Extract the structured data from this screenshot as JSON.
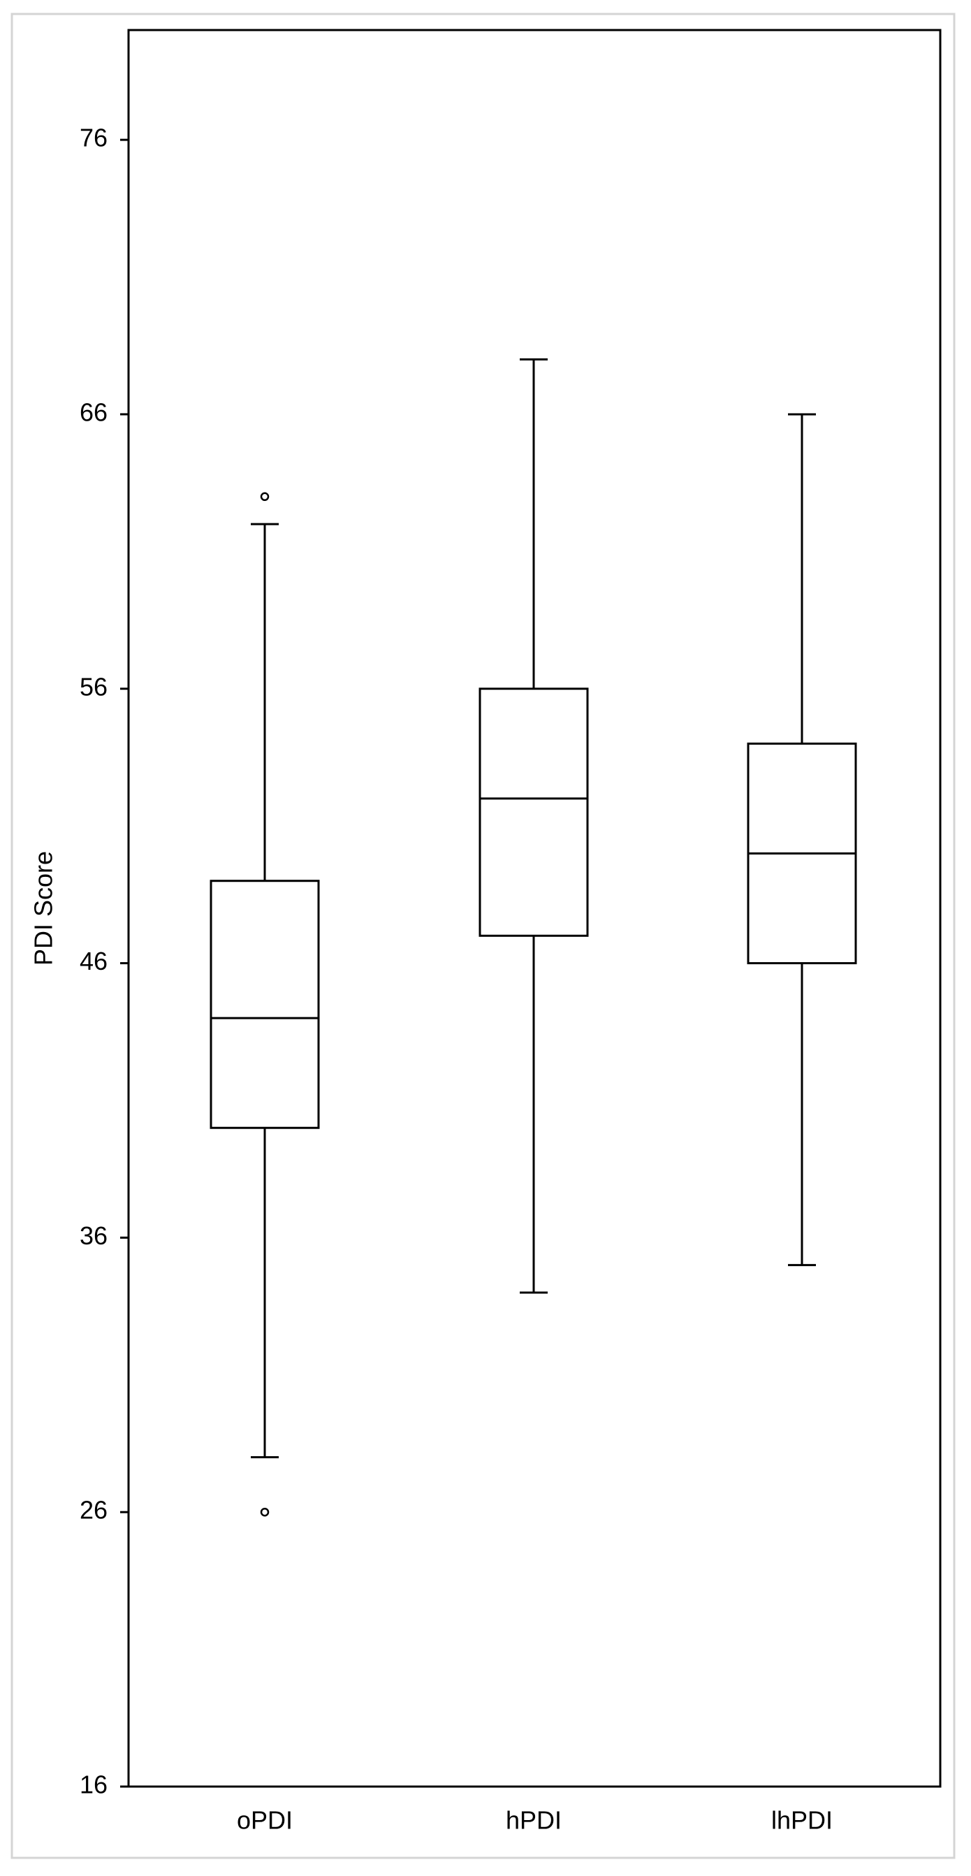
{
  "chart_data": {
    "type": "box",
    "y_label": "PDI Score",
    "categories": [
      "oPDI",
      "hPDI",
      "lhPDI"
    ],
    "whisker_low": [
      28,
      34,
      35
    ],
    "q1": [
      40,
      47,
      46
    ],
    "median": [
      44,
      52,
      50
    ],
    "q3": [
      49,
      56,
      54
    ],
    "whisker_high": [
      62,
      68,
      66
    ],
    "outliers": [
      [
        26,
        63
      ],
      [],
      []
    ],
    "color": "#000000",
    "ylim": [
      16,
      80
    ],
    "yticks": [
      16,
      26,
      36,
      46,
      56,
      66,
      76
    ]
  }
}
